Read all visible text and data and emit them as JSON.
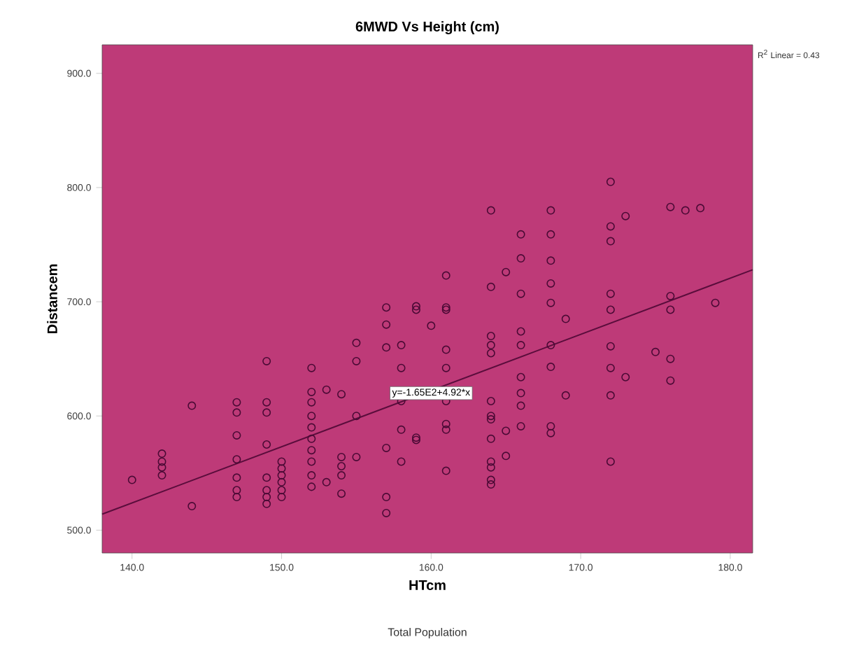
{
  "chart_data": {
    "type": "scatter",
    "title": "6MWD Vs Height (cm)",
    "xlabel": "HTcm",
    "ylabel": "Distancem",
    "xlim": [
      138,
      181.5
    ],
    "ylim": [
      480,
      925
    ],
    "xticks": [
      {
        "value": 140,
        "label": "140.0"
      },
      {
        "value": 150,
        "label": "150.0"
      },
      {
        "value": 160,
        "label": "160.0"
      },
      {
        "value": 170,
        "label": "170.0"
      },
      {
        "value": 180,
        "label": "180.0"
      }
    ],
    "yticks": [
      {
        "value": 500,
        "label": "500.0"
      },
      {
        "value": 600,
        "label": "600.0"
      },
      {
        "value": 700,
        "label": "700.0"
      },
      {
        "value": 800,
        "label": "800.0"
      },
      {
        "value": 900,
        "label": "900.0"
      }
    ],
    "marker": "circle",
    "grid": false,
    "annotations": [
      "R$^{2}$ Linear = 0.43",
      {
        "text": "y=-1.65E2+4.92*x",
        "x": 160,
        "y": 620
      },
      "Total Population"
    ],
    "series": [
      {
        "color": "#4a0a35",
        "x": [
          140,
          142,
          142,
          142,
          142,
          144,
          144,
          147,
          147,
          147,
          147,
          147,
          147,
          147,
          149,
          149,
          149,
          149,
          149,
          149,
          149,
          149,
          150,
          150,
          150,
          150,
          150,
          150,
          152,
          152,
          152,
          152,
          152,
          152,
          152,
          152,
          152,
          152,
          153,
          153,
          154,
          154,
          154,
          154,
          154,
          155,
          155,
          155,
          155,
          157,
          157,
          157,
          157,
          157,
          157,
          158,
          158,
          158,
          158,
          158,
          159,
          159,
          159,
          159,
          160,
          161,
          161,
          161,
          161,
          161,
          161,
          161,
          161,
          161,
          164,
          164,
          164,
          164,
          164,
          164,
          164,
          164,
          164,
          164,
          164,
          164,
          164,
          165,
          165,
          165,
          166,
          166,
          166,
          166,
          166,
          166,
          166,
          166,
          166,
          168,
          168,
          168,
          168,
          168,
          168,
          168,
          168,
          168,
          169,
          169,
          172,
          172,
          172,
          172,
          172,
          172,
          172,
          172,
          172,
          173,
          173,
          175,
          176,
          176,
          176,
          176,
          176,
          177,
          178,
          179
        ],
        "values": [
          544,
          567,
          560,
          555,
          548,
          609,
          521,
          612,
          603,
          583,
          562,
          546,
          535,
          529,
          648,
          612,
          603,
          575,
          546,
          535,
          529,
          523,
          560,
          554,
          548,
          542,
          535,
          529,
          642,
          621,
          612,
          600,
          590,
          580,
          570,
          560,
          548,
          538,
          623,
          542,
          619,
          564,
          556,
          548,
          532,
          664,
          648,
          600,
          564,
          695,
          680,
          660,
          572,
          529,
          515,
          662,
          642,
          613,
          588,
          560,
          581,
          693,
          696,
          579,
          679,
          693,
          695,
          723,
          658,
          642,
          593,
          552,
          613,
          588,
          780,
          713,
          670,
          655,
          613,
          600,
          580,
          560,
          540,
          662,
          597,
          555,
          544,
          726,
          587,
          565,
          759,
          738,
          707,
          674,
          662,
          634,
          620,
          609,
          591,
          780,
          759,
          736,
          716,
          699,
          662,
          643,
          591,
          585,
          685,
          618,
          805,
          766,
          753,
          707,
          693,
          661,
          642,
          618,
          560,
          775,
          634,
          656,
          783,
          705,
          693,
          650,
          631,
          780,
          782,
          699
        ]
      },
      {
        "type": "line",
        "color": "#5a0d3c",
        "marker": "none",
        "x": [
          138,
          181.5
        ],
        "values": [
          514,
          728
        ]
      }
    ]
  }
}
